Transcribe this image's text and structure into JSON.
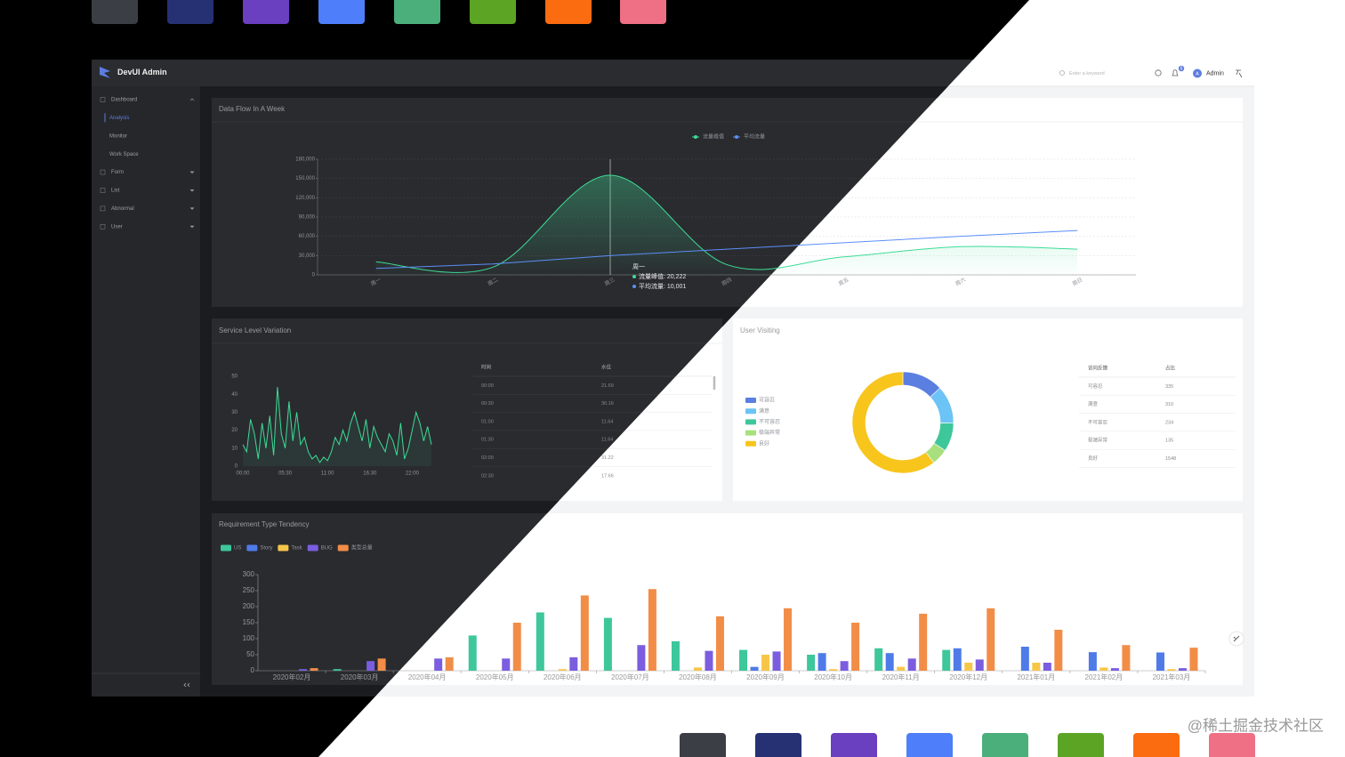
{
  "header": {
    "brand": "DevUI Admin",
    "search_placeholder": "Enter a keyword",
    "badge": "6",
    "avatar": "A",
    "user": "Admin"
  },
  "sidebar": {
    "items": [
      {
        "label": "Dashboard",
        "children": [
          "Analysis",
          "Monitor",
          "Work Space"
        ]
      },
      {
        "label": "Form"
      },
      {
        "label": "List"
      },
      {
        "label": "Abnormal"
      },
      {
        "label": "User"
      }
    ]
  },
  "chart_data": [
    {
      "type": "line",
      "title": "Data Flow In A Week",
      "categories": [
        "周一",
        "周二",
        "周三",
        "周四",
        "周五",
        "周六",
        "周日"
      ],
      "series": [
        {
          "name": "流量峰值",
          "color": "#3ddc97",
          "smooth": true,
          "area": true,
          "values": [
            20222,
            12000,
            155000,
            16000,
            28000,
            44000,
            40000
          ]
        },
        {
          "name": "平均流量",
          "color": "#5b8ff9",
          "values": [
            10001,
            17000,
            30000,
            40000,
            50000,
            60000,
            69000
          ]
        }
      ],
      "ylim": [
        0,
        180000
      ],
      "yticks": [
        0,
        {
          "value": 30000,
          "label": "30,000"
        },
        {
          "value": 60000,
          "label": "60,000"
        },
        {
          "value": 90000,
          "label": "90,000"
        },
        {
          "value": 120000,
          "label": "120,000"
        },
        {
          "value": 150000,
          "label": "150,000"
        },
        {
          "value": 180000,
          "label": "180,000"
        }
      ],
      "grid": true,
      "tooltip": {
        "title": "周一",
        "lines": [
          "流量峰值: 20,222",
          "平均流量: 10,001"
        ]
      }
    },
    {
      "type": "line",
      "title": "Service Level Variation",
      "series": [
        {
          "color": "#3ddc97",
          "area": true,
          "values": [
            12,
            8,
            26,
            18,
            4,
            24,
            10,
            28,
            6,
            44,
            18,
            10,
            36,
            14,
            30,
            12,
            16,
            8,
            4,
            6,
            2,
            5,
            3,
            8,
            16,
            12,
            20,
            14,
            24,
            30,
            22,
            14,
            26,
            10,
            22,
            16,
            12,
            8,
            18,
            14,
            6,
            24,
            4,
            10,
            20,
            30,
            24,
            14,
            22,
            12
          ]
        }
      ],
      "xlim": [
        0,
        49
      ],
      "xticks": [
        {
          "value": 0,
          "label": "00:00"
        },
        {
          "value": 11,
          "label": "05:30"
        },
        {
          "value": 22,
          "label": "11:00"
        },
        {
          "value": 33,
          "label": "16:30"
        },
        {
          "value": 44,
          "label": "22:00"
        }
      ],
      "ylim": [
        0,
        50
      ],
      "yticks": [
        0,
        10,
        20,
        30,
        40,
        50
      ],
      "grid": false
    },
    {
      "type": "pie",
      "title": "User Visiting",
      "donut": true,
      "categories": [
        "可容忍",
        "满意",
        "不可容忍",
        "极端异常",
        "良好"
      ],
      "values": [
        335,
        310,
        234,
        135,
        1548
      ],
      "colors": [
        "#5b7fe0",
        "#6cc3f5",
        "#3ec79a",
        "#a8e07d",
        "#f8c51c"
      ],
      "legend": "left"
    },
    {
      "type": "bar",
      "title": "Requirement Type Tendency",
      "categories": [
        "2020年02月",
        "2020年03月",
        "2020年04月",
        "2020年05月",
        "2020年06月",
        "2020年07月",
        "2020年08月",
        "2020年09月",
        "2020年10月",
        "2020年11月",
        "2020年12月",
        "2021年01月",
        "2021年02月",
        "2021年03月"
      ],
      "series": [
        {
          "name": "US",
          "color": "#3dc79b",
          "values": [
            0,
            5,
            0,
            110,
            182,
            165,
            92,
            65,
            50,
            70,
            65,
            0,
            0,
            0
          ]
        },
        {
          "name": "Story",
          "color": "#4f7be8",
          "values": [
            0,
            0,
            0,
            0,
            0,
            0,
            0,
            12,
            55,
            55,
            70,
            75,
            58,
            57
          ]
        },
        {
          "name": "Task",
          "color": "#f7c649",
          "values": [
            0,
            0,
            0,
            0,
            5,
            0,
            10,
            50,
            5,
            12,
            25,
            25,
            10,
            5
          ]
        },
        {
          "name": "BUG",
          "color": "#7b5de0",
          "values": [
            5,
            30,
            38,
            38,
            42,
            80,
            62,
            60,
            30,
            38,
            35,
            25,
            8,
            8
          ]
        },
        {
          "name": "类型总量",
          "color": "#f28d48",
          "values": [
            8,
            38,
            42,
            150,
            235,
            255,
            170,
            195,
            150,
            178,
            195,
            128,
            80,
            72
          ]
        }
      ],
      "ylim": [
        0,
        300
      ],
      "yticks": [
        0,
        50,
        100,
        150,
        200,
        250,
        300
      ],
      "legend": "top-left"
    }
  ],
  "tables": [
    {
      "columns": [
        "时间",
        "水位"
      ],
      "rows": [
        [
          "00:00",
          "21.69"
        ],
        [
          "00:30",
          "30.16"
        ],
        [
          "01:00",
          "11.64"
        ],
        [
          "01:30",
          "11.64"
        ],
        [
          "02:00",
          "31.22"
        ],
        [
          "02:30",
          "17.66"
        ]
      ]
    },
    {
      "columns": [
        "访问反馈",
        "占比"
      ],
      "rows": [
        [
          "可容忍",
          "335"
        ],
        [
          "满意",
          "310"
        ],
        [
          "不可容忍",
          "234"
        ],
        [
          "极端异常",
          "135"
        ],
        [
          "良好",
          "1548"
        ]
      ]
    }
  ],
  "watermark": "@稀土掘金技术社区"
}
